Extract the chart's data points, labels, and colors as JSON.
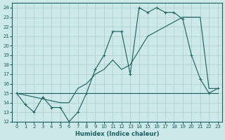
{
  "xlabel": "Humidex (Indice chaleur)",
  "bg_color": "#cce8e8",
  "line_color": "#1a6060",
  "grid_color": "#aacccc",
  "xlim": [
    -0.5,
    23.5
  ],
  "ylim": [
    12,
    24.5
  ],
  "yticks": [
    12,
    13,
    14,
    15,
    16,
    17,
    18,
    19,
    20,
    21,
    22,
    23,
    24
  ],
  "xticks": [
    0,
    1,
    2,
    3,
    4,
    5,
    6,
    7,
    8,
    9,
    10,
    11,
    12,
    13,
    14,
    15,
    16,
    17,
    18,
    19,
    20,
    21,
    22,
    23
  ],
  "line1_x": [
    0,
    1,
    2,
    3,
    4,
    5,
    6,
    7,
    8,
    9,
    10,
    11,
    12,
    13,
    14,
    15,
    16,
    17,
    18,
    19,
    20,
    21,
    22,
    23
  ],
  "line1_y": [
    15.0,
    13.8,
    13.0,
    14.6,
    13.5,
    13.5,
    12.0,
    13.0,
    15.0,
    17.5,
    19.0,
    21.5,
    21.5,
    17.0,
    24.0,
    23.5,
    24.0,
    23.5,
    23.5,
    22.8,
    19.0,
    16.5,
    15.0,
    15.5
  ],
  "line2_x": [
    0,
    1,
    2,
    3,
    4,
    5,
    6,
    7,
    8,
    9,
    10,
    11,
    12,
    13,
    14,
    15,
    16,
    17,
    18,
    19,
    20,
    21,
    22,
    23
  ],
  "line2_y": [
    15.0,
    15.0,
    15.0,
    15.0,
    15.0,
    15.0,
    15.0,
    15.0,
    15.0,
    15.0,
    15.0,
    15.0,
    15.0,
    15.0,
    15.0,
    15.0,
    15.0,
    15.0,
    15.0,
    15.0,
    15.0,
    15.0,
    15.0,
    15.0
  ],
  "line3_x": [
    0,
    5,
    6,
    7,
    8,
    9,
    10,
    11,
    12,
    13,
    14,
    15,
    16,
    17,
    18,
    19,
    20,
    21,
    22,
    23
  ],
  "line3_y": [
    15.0,
    14.0,
    14.0,
    15.5,
    16.0,
    17.0,
    17.5,
    18.5,
    17.5,
    18.0,
    19.5,
    21.0,
    21.5,
    22.0,
    22.5,
    23.0,
    23.0,
    23.0,
    15.5,
    15.5
  ],
  "marker": "+"
}
